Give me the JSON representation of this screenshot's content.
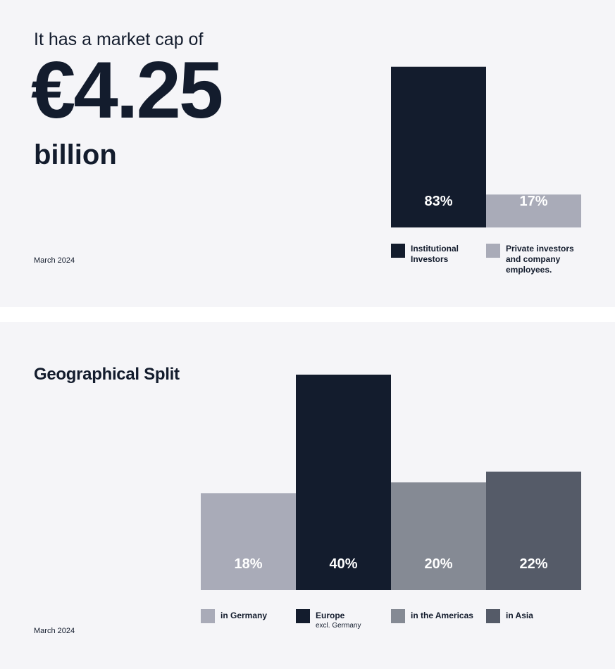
{
  "market_cap": {
    "intro": "It has a market cap of",
    "value": "€4.25",
    "unit": "billion",
    "date": "March 2024"
  },
  "geo": {
    "title": "Geographical Split",
    "date": "March 2024"
  },
  "chart_data": [
    {
      "type": "bar",
      "title": "",
      "categories": [
        "Institutional Investors",
        "Private investors and company employees."
      ],
      "values": [
        83,
        17
      ],
      "value_labels": [
        "83%",
        "17%"
      ],
      "colors": [
        "#131c2d",
        "#a9abb8"
      ],
      "ylim": [
        0,
        100
      ],
      "grid": false,
      "legend": "bottom",
      "legend_sub": [
        "",
        ""
      ]
    },
    {
      "type": "bar",
      "title": "Geographical Split",
      "categories": [
        "in Germany",
        "Europe",
        "in the Americas",
        "in Asia"
      ],
      "values": [
        18,
        40,
        20,
        22
      ],
      "value_labels": [
        "18%",
        "40%",
        "20%",
        "22%"
      ],
      "colors": [
        "#a9abb8",
        "#131c2d",
        "#858a94",
        "#555b68"
      ],
      "ylim": [
        0,
        40
      ],
      "grid": false,
      "legend": "bottom",
      "legend_sub": [
        "",
        "excl. Germany",
        "",
        ""
      ]
    }
  ]
}
